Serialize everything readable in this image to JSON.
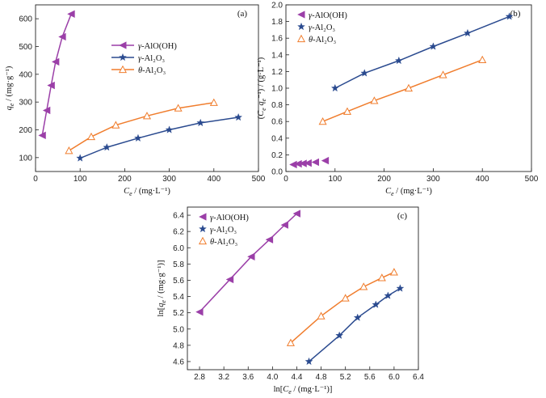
{
  "chart_data": [
    {
      "type": "line",
      "panel_label": "(a)",
      "xlabel": "C_e / (mg·L⁻¹)",
      "ylabel": "q_e / (mg·g⁻¹)",
      "xlim": [
        0,
        500
      ],
      "ylim": [
        50,
        650
      ],
      "xticks": [
        0,
        100,
        200,
        300,
        400,
        500
      ],
      "yticks": [
        100,
        200,
        300,
        400,
        500,
        600
      ],
      "legend_position": "center-right",
      "series": [
        {
          "name": "γ-AlO(OH)",
          "color": "#9b3fa8",
          "marker": "triangle-left",
          "line": true,
          "x": [
            15,
            25,
            35,
            45,
            60,
            80
          ],
          "y": [
            180,
            270,
            360,
            445,
            535,
            617
          ]
        },
        {
          "name": "γ-Al₂O₃",
          "color": "#2a4a8f",
          "marker": "star",
          "line": true,
          "x": [
            100,
            160,
            230,
            300,
            370,
            455
          ],
          "y": [
            98,
            137,
            170,
            200,
            225,
            245
          ]
        },
        {
          "name": "θ-Al₂O₃",
          "color": "#f07d2d",
          "marker": "triangle-open",
          "line": true,
          "x": [
            75,
            125,
            180,
            250,
            320,
            400
          ],
          "y": [
            125,
            175,
            217,
            250,
            278,
            298
          ]
        }
      ]
    },
    {
      "type": "line",
      "panel_label": "(b)",
      "xlabel": "C_e / (mg·L⁻¹)",
      "ylabel": "(C_e q_e⁻¹) / (g·L⁻¹)",
      "xlim": [
        0,
        500
      ],
      "ylim": [
        0,
        2.0
      ],
      "xticks": [
        0,
        100,
        200,
        300,
        400,
        500
      ],
      "yticks": [
        0.0,
        0.2,
        0.4,
        0.6,
        0.8,
        1.0,
        1.2,
        1.4,
        1.6,
        1.8,
        2.0
      ],
      "legend_position": "top-left",
      "series": [
        {
          "name": "γ-AlO(OH)",
          "color": "#9b3fa8",
          "marker": "triangle-left",
          "line": false,
          "x": [
            15,
            25,
            35,
            45,
            60,
            80
          ],
          "y": [
            0.083,
            0.092,
            0.097,
            0.101,
            0.112,
            0.13
          ]
        },
        {
          "name": "γ-Al₂O₃",
          "color": "#2a4a8f",
          "marker": "star",
          "line": true,
          "x": [
            100,
            160,
            230,
            300,
            370,
            455
          ],
          "y": [
            1.0,
            1.18,
            1.33,
            1.5,
            1.66,
            1.86
          ]
        },
        {
          "name": "θ-Al₂O₃",
          "color": "#f07d2d",
          "marker": "triangle-open",
          "line": true,
          "x": [
            75,
            125,
            180,
            250,
            320,
            400
          ],
          "y": [
            0.6,
            0.72,
            0.85,
            1.0,
            1.16,
            1.34
          ]
        }
      ]
    },
    {
      "type": "line",
      "panel_label": "(c)",
      "xlabel": "ln[C_e / (mg·L⁻¹)]",
      "ylabel": "ln[q_e / (mg·g⁻¹)]",
      "xlim": [
        2.6,
        6.4
      ],
      "ylim": [
        4.5,
        6.5
      ],
      "xticks": [
        2.8,
        3.2,
        3.6,
        4.0,
        4.4,
        4.8,
        5.2,
        5.6,
        6.0,
        6.4
      ],
      "yticks": [
        4.6,
        4.8,
        5.0,
        5.2,
        5.4,
        5.6,
        5.8,
        6.0,
        6.2,
        6.4
      ],
      "legend_position": "top-left",
      "series": [
        {
          "name": "γ-AlO(OH)",
          "color": "#9b3fa8",
          "marker": "triangle-left",
          "line": true,
          "x": [
            2.8,
            3.3,
            3.65,
            3.95,
            4.2,
            4.4
          ],
          "y": [
            5.21,
            5.61,
            5.89,
            6.1,
            6.28,
            6.42
          ]
        },
        {
          "name": "γ-Al₂O₃",
          "color": "#2a4a8f",
          "marker": "star",
          "line": true,
          "x": [
            4.6,
            5.1,
            5.4,
            5.7,
            5.9,
            6.1
          ],
          "y": [
            4.6,
            4.92,
            5.14,
            5.3,
            5.41,
            5.5
          ]
        },
        {
          "name": "θ-Al₂O₃",
          "color": "#f07d2d",
          "marker": "triangle-open",
          "line": true,
          "x": [
            4.3,
            4.8,
            5.2,
            5.5,
            5.8,
            6.0
          ],
          "y": [
            4.83,
            5.16,
            5.38,
            5.52,
            5.63,
            5.7
          ]
        }
      ]
    }
  ]
}
